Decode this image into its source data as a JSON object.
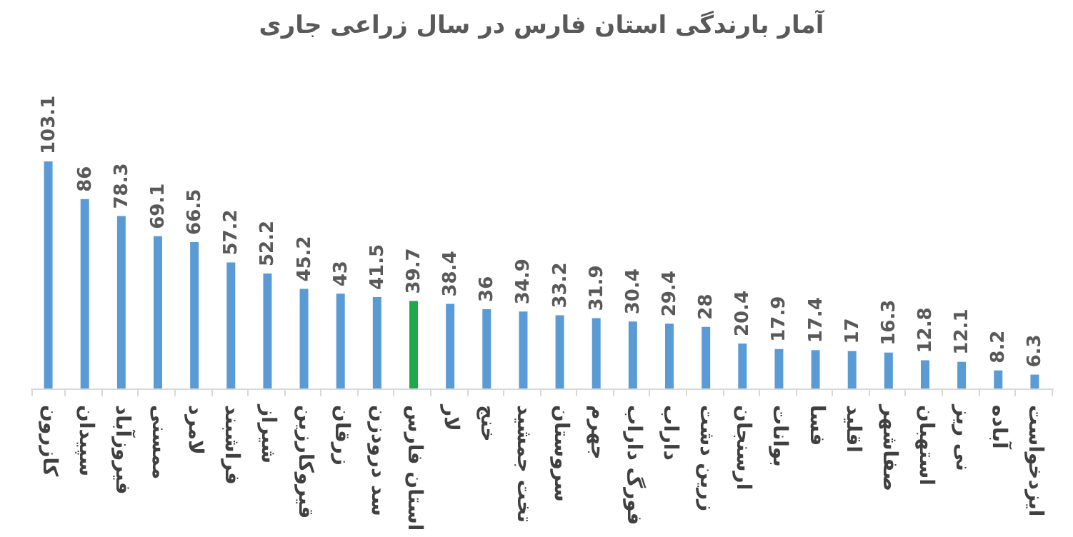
{
  "chart_data": {
    "type": "bar",
    "title": "آمار بارندگی استان فارس در سال زراعی جاری",
    "categories": [
      "کازرون",
      "سپیدان",
      "فیروزآباد",
      "ممسنی",
      "لامرد",
      "فراشبند",
      "شیراز",
      "قیروکارزین",
      "زرقان",
      "سد درودزن",
      "استان فارس",
      "لار",
      "خنج",
      "تخت جمشید",
      "سروستان",
      "جهرم",
      "فورگ داراب",
      "داراب",
      "زرین دشت",
      "ارسنجان",
      "بوانات",
      "فسا",
      "اقلید",
      "صفاشهر",
      "استهبان",
      "نی ریز",
      "آباده",
      "ایزدخواست"
    ],
    "values": [
      103.1,
      86,
      78.3,
      69.1,
      66.5,
      57.2,
      52.2,
      45.2,
      43,
      41.5,
      39.7,
      38.4,
      36,
      34.9,
      33.2,
      31.9,
      30.4,
      29.4,
      28,
      20.4,
      17.9,
      17.4,
      17,
      16.3,
      12.8,
      12.1,
      8.2,
      6.3
    ],
    "colors": [
      "#5b9bd5",
      "#5b9bd5",
      "#5b9bd5",
      "#5b9bd5",
      "#5b9bd5",
      "#5b9bd5",
      "#5b9bd5",
      "#5b9bd5",
      "#5b9bd5",
      "#5b9bd5",
      "#1ea84c",
      "#5b9bd5",
      "#5b9bd5",
      "#5b9bd5",
      "#5b9bd5",
      "#5b9bd5",
      "#5b9bd5",
      "#5b9bd5",
      "#5b9bd5",
      "#5b9bd5",
      "#5b9bd5",
      "#5b9bd5",
      "#5b9bd5",
      "#5b9bd5",
      "#5b9bd5",
      "#5b9bd5",
      "#5b9bd5",
      "#5b9bd5"
    ],
    "data_labels": true
  }
}
